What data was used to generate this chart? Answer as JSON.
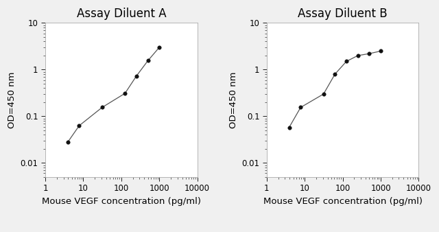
{
  "title_A": "Assay Diluent A",
  "title_B": "Assay Diluent B",
  "xlabel": "Mouse VEGF concentration (pg/ml)",
  "ylabel": "OD=450 nm",
  "xlim": [
    1,
    10000
  ],
  "ylim": [
    0.005,
    10
  ],
  "background_color": "#f0f0f0",
  "plot_bg_color": "#ffffff",
  "x_A": [
    3.9,
    7.8,
    31.25,
    125,
    250,
    500,
    1000
  ],
  "y_A": [
    0.028,
    0.063,
    0.155,
    0.31,
    0.73,
    1.55,
    3.0
  ],
  "x_B": [
    3.9,
    7.8,
    31.25,
    62.5,
    125,
    250,
    500,
    1000
  ],
  "y_B": [
    0.058,
    0.155,
    0.3,
    0.8,
    1.5,
    2.0,
    2.2,
    2.5
  ],
  "line_color": "#555555",
  "marker_color": "#111111",
  "marker_size": 4,
  "line_width": 0.9,
  "title_fontsize": 12,
  "label_fontsize": 9.5,
  "tick_fontsize": 8.5
}
